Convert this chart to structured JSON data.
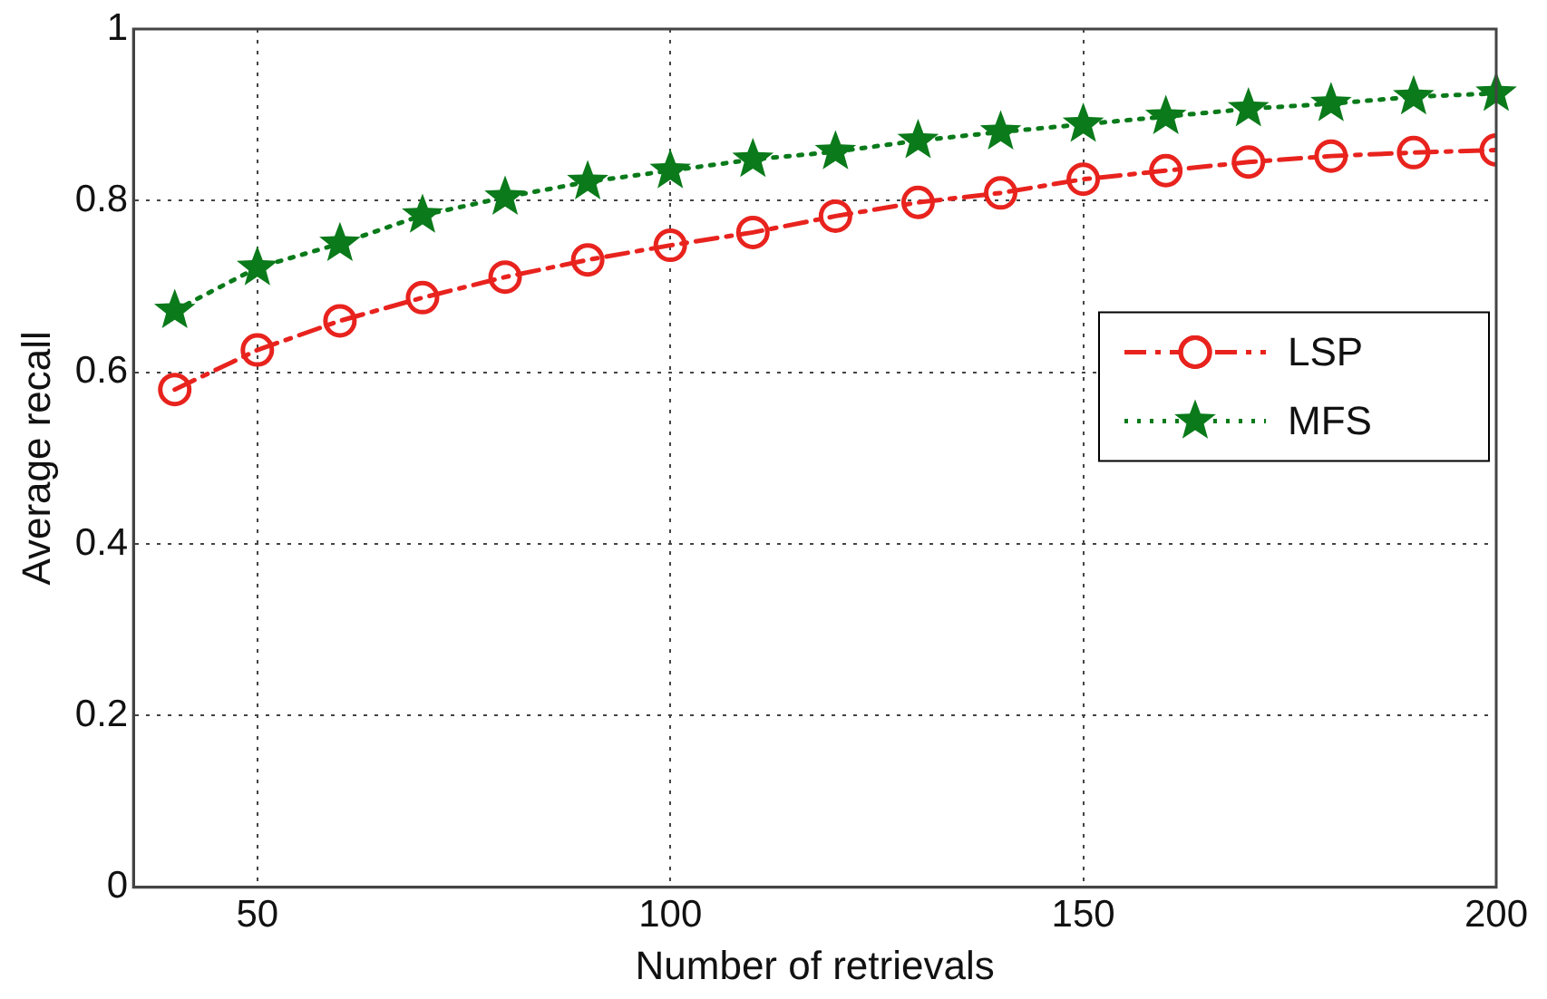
{
  "chart_data": {
    "type": "line",
    "xlabel": "Number of retrievals",
    "ylabel": "Average recall",
    "x": [
      40,
      50,
      60,
      70,
      80,
      90,
      100,
      110,
      120,
      130,
      140,
      150,
      160,
      170,
      180,
      190,
      200
    ],
    "xlim": [
      35,
      200
    ],
    "xticks": [
      50,
      100,
      150,
      200
    ],
    "ylim": [
      0,
      1
    ],
    "yticks": [
      0,
      0.2,
      0.4,
      0.6,
      0.8,
      1
    ],
    "grid": true,
    "legend": "right",
    "series": [
      {
        "name": "LSP",
        "color": "#e8231e",
        "marker": "circle",
        "line_style": "dashed",
        "values": [
          0.58,
          0.626,
          0.66,
          0.687,
          0.711,
          0.731,
          0.748,
          0.763,
          0.782,
          0.798,
          0.809,
          0.825,
          0.835,
          0.845,
          0.852,
          0.856,
          0.859
        ]
      },
      {
        "name": "MFS",
        "color": "#0a7a1a",
        "marker": "star",
        "line_style": "dotted",
        "values": [
          0.672,
          0.722,
          0.75,
          0.783,
          0.804,
          0.822,
          0.835,
          0.848,
          0.857,
          0.87,
          0.88,
          0.889,
          0.898,
          0.907,
          0.913,
          0.921,
          0.925
        ]
      }
    ]
  }
}
